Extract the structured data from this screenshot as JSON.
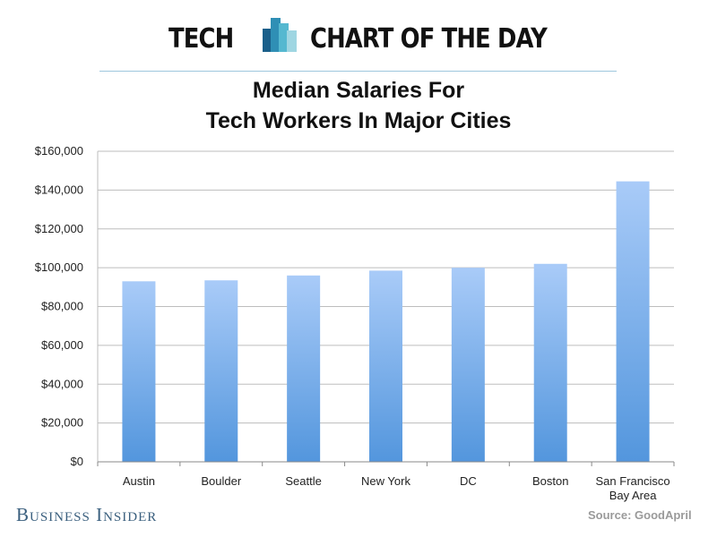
{
  "header": {
    "left_word": "TECH",
    "right_word": "CHART OF THE DAY",
    "logo_icon": "bar-logo-icon",
    "logo_colors": [
      "#1a5f8a",
      "#2f8fb5",
      "#55b8d0",
      "#9fd6e2"
    ]
  },
  "footer": {
    "brand": "Business Insider",
    "source": "Source: GoodApril"
  },
  "chart_data": {
    "type": "bar",
    "title": "Median Salaries For Tech Workers In Major Cities",
    "title_lines": [
      "Median Salaries For",
      "Tech Workers In Major Cities"
    ],
    "categories": [
      "Austin",
      "Boulder",
      "Seattle",
      "New York",
      "DC",
      "Boston",
      "San Francisco Bay Area"
    ],
    "category_label_lines": [
      [
        "Austin"
      ],
      [
        "Boulder"
      ],
      [
        "Seattle"
      ],
      [
        "New York"
      ],
      [
        "DC"
      ],
      [
        "Boston"
      ],
      [
        "San Francisco",
        "Bay Area"
      ]
    ],
    "values": [
      93000,
      93500,
      96000,
      98500,
      100000,
      102000,
      144500
    ],
    "ylim": [
      0,
      160000
    ],
    "yticks": [
      0,
      20000,
      40000,
      60000,
      80000,
      100000,
      120000,
      140000,
      160000
    ],
    "ytick_labels": [
      "$0",
      "$20,000",
      "$40,000",
      "$60,000",
      "$80,000",
      "$100,000",
      "$120,000",
      "$140,000",
      "$160,000"
    ],
    "xlabel": "",
    "ylabel": "",
    "grid": true,
    "bar_color_top": "#a9cbf8",
    "bar_color_bottom": "#5396dd",
    "grid_color": "#bdbdbd"
  }
}
